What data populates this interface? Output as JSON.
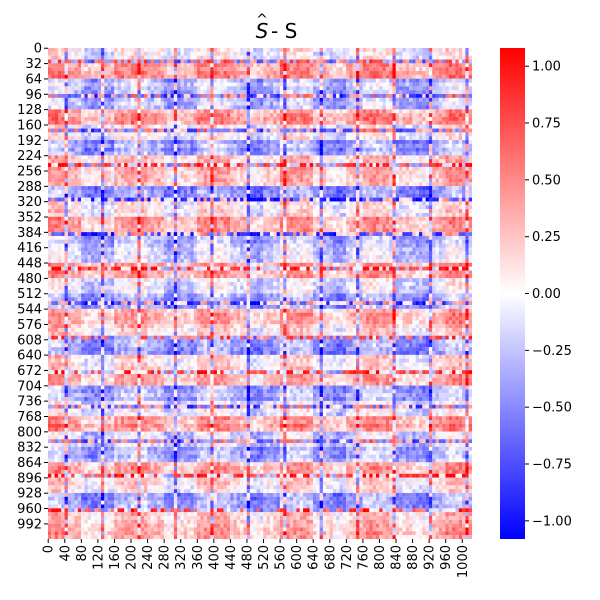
{
  "chart_data": {
    "type": "heatmap",
    "title": {
      "base": "S",
      "hat": "^",
      "rest": " - S"
    },
    "xlabel": "",
    "ylabel": "",
    "matrix_size": 1024,
    "row_ticks": [
      "0",
      "32",
      "64",
      "96",
      "128",
      "160",
      "192",
      "224",
      "256",
      "288",
      "320",
      "352",
      "384",
      "416",
      "448",
      "480",
      "512",
      "544",
      "576",
      "608",
      "640",
      "672",
      "704",
      "736",
      "768",
      "800",
      "832",
      "864",
      "896",
      "928",
      "960",
      "992"
    ],
    "col_ticks": [
      "0",
      "40",
      "80",
      "120",
      "160",
      "200",
      "240",
      "280",
      "320",
      "360",
      "400",
      "440",
      "480",
      "520",
      "560",
      "600",
      "640",
      "680",
      "720",
      "760",
      "800",
      "840",
      "880",
      "920",
      "960",
      "1000"
    ],
    "colorbar": {
      "cmap": "bwr",
      "vmin": -1.08,
      "vmax": 1.08,
      "ticks": [
        "1.00",
        "0.75",
        "0.50",
        "0.25",
        "0.00",
        "−0.25",
        "−0.50",
        "−0.75",
        "−1.00"
      ],
      "tick_values": [
        1.0,
        0.75,
        0.5,
        0.25,
        0.0,
        -0.25,
        -0.5,
        -0.75,
        -1.0
      ]
    },
    "colors": {
      "min": "#0000ff",
      "mid": "#ffffff",
      "max": "#ff0000"
    }
  }
}
